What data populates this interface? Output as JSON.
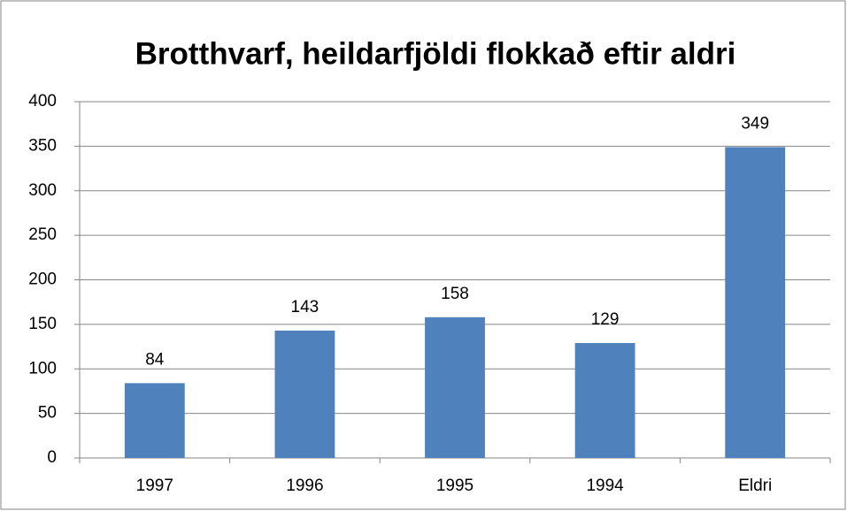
{
  "chart_data": {
    "type": "bar",
    "title": "Brotthvarf, heildarfjöldi flokkað eftir aldri",
    "categories": [
      "1997",
      "1996",
      "1995",
      "1994",
      "Eldri"
    ],
    "values": [
      84,
      143,
      158,
      129,
      349
    ],
    "color": "#4f81bd",
    "ylim": [
      0,
      400
    ],
    "yticks": [
      0,
      50,
      100,
      150,
      200,
      250,
      300,
      350,
      400
    ],
    "grid": true
  }
}
